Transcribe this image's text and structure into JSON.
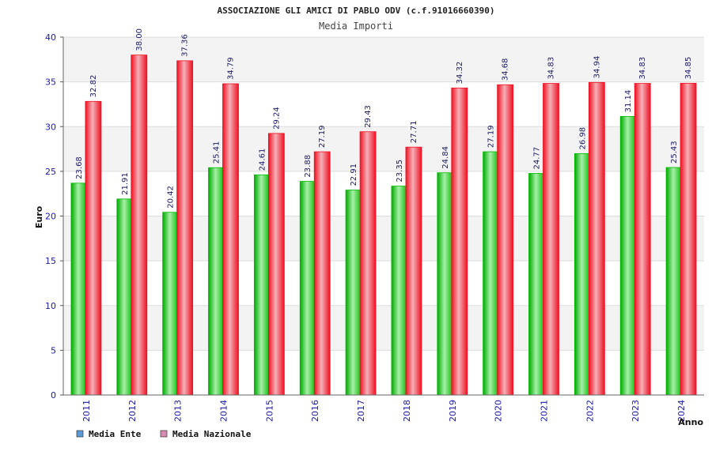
{
  "chart_data": {
    "type": "bar",
    "title": "ASSOCIAZIONE GLI AMICI DI PABLO ODV (c.f.91016660390)",
    "subtitle": "Media Importi",
    "xlabel": "Anno",
    "ylabel": "Euro",
    "ylim": [
      0,
      40
    ],
    "yticks": [
      0,
      5,
      10,
      15,
      20,
      25,
      30,
      35,
      40
    ],
    "grid": true,
    "legend_position": "bottom-left",
    "categories": [
      "2011",
      "2012",
      "2013",
      "2014",
      "2015",
      "2016",
      "2017",
      "2018",
      "2019",
      "2020",
      "2021",
      "2022",
      "2023",
      "2024"
    ],
    "series": [
      {
        "name": "Media Ente",
        "color": "#00bb00",
        "legend_color": "#5b9bd5",
        "values": [
          23.68,
          21.91,
          20.42,
          25.41,
          24.61,
          23.88,
          22.91,
          23.35,
          24.84,
          27.19,
          24.77,
          26.98,
          31.14,
          25.43
        ],
        "labels": [
          "23.68",
          "21.91",
          "20.42",
          "25.41",
          "24.61",
          "23.88",
          "22.91",
          "23.35",
          "24.84",
          "27.19",
          "24.77",
          "26.98",
          "31.14",
          "25.43"
        ]
      },
      {
        "name": "Media Nazionale",
        "color": "#ee1122",
        "legend_color": "#d98bb4",
        "values": [
          32.82,
          38.0,
          37.36,
          34.79,
          29.24,
          27.19,
          29.43,
          27.71,
          34.32,
          34.68,
          34.83,
          34.94,
          34.83,
          34.85
        ],
        "labels": [
          "32.82",
          "38.00",
          "37.36",
          "34.79",
          "29.24",
          "27.19",
          "29.43",
          "27.71",
          "34.32",
          "34.68",
          "34.83",
          "34.94",
          "34.83",
          "34.85"
        ]
      }
    ]
  }
}
